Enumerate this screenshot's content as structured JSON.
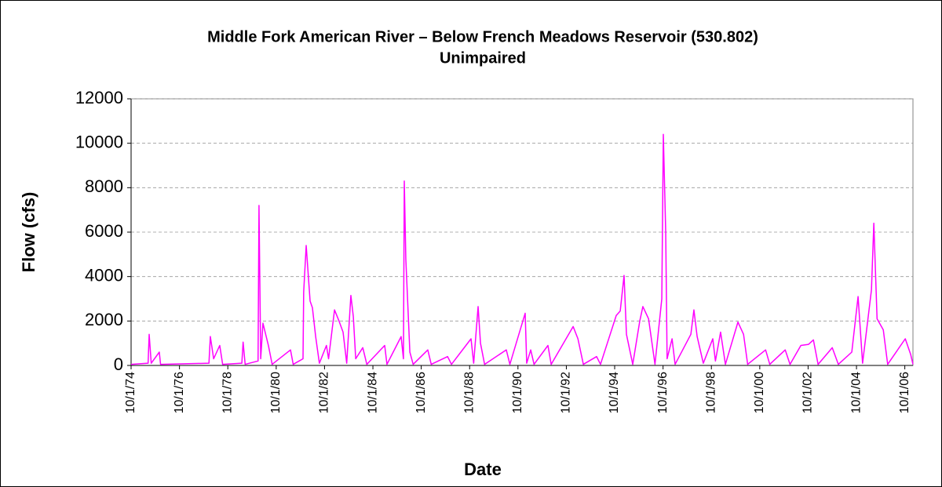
{
  "chart_data": {
    "type": "line",
    "title": "Middle Fork American River – Below French Meadows Reservoir (530.802)",
    "subtitle": "Unimpaired",
    "x_label": "Date",
    "y_label": "Flow (cfs)",
    "x": [
      "1974-10-01",
      "1975-06-15",
      "1975-07-01",
      "1975-08-01",
      "1975-12-01",
      "1975-12-20",
      "1977-12-20",
      "1978-01-10",
      "1978-03-01",
      "1978-06-01",
      "1978-07-15",
      "1979-05-01",
      "1979-05-20",
      "1979-06-20",
      "1980-01-01",
      "1980-01-15",
      "1980-02-10",
      "1980-03-15",
      "1980-06-05",
      "1980-08-01",
      "1981-05-05",
      "1981-06-15",
      "1981-11-10",
      "1981-11-20",
      "1981-12-28",
      "1982-02-25",
      "1982-04-01",
      "1982-05-20",
      "1982-07-15",
      "1982-10-30",
      "1982-12-01",
      "1983-03-01",
      "1983-05-08",
      "1983-07-08",
      "1983-09-01",
      "1983-11-03",
      "1983-12-10",
      "1984-01-15",
      "1984-05-01",
      "1984-07-01",
      "1985-03-28",
      "1985-05-01",
      "1985-12-01",
      "1986-01-05",
      "1986-01-18",
      "1986-02-10",
      "1986-04-12",
      "1986-06-01",
      "1987-01-08",
      "1987-03-01",
      "1987-11-03",
      "1988-01-01",
      "1988-10-22",
      "1988-12-01",
      "1989-02-06",
      "1989-03-14",
      "1989-05-15",
      "1990-04-08",
      "1990-06-01",
      "1991-01-18",
      "1991-02-10",
      "1991-04-12",
      "1991-06-01",
      "1991-12-28",
      "1992-02-15",
      "1993-01-12",
      "1993-03-25",
      "1993-06-15",
      "1994-01-01",
      "1994-03-01",
      "1994-10-25",
      "1994-12-24",
      "1995-02-20",
      "1995-03-28",
      "1995-07-01",
      "1995-10-15",
      "1995-12-01",
      "1996-02-25",
      "1996-06-01",
      "1996-09-12",
      "1996-10-05",
      "1996-11-10",
      "1996-12-01",
      "1997-02-14",
      "1997-04-01",
      "1997-11-25",
      "1998-01-10",
      "1998-02-28",
      "1998-06-01",
      "1998-10-22",
      "1998-12-01",
      "1999-02-17",
      "1999-05-01",
      "1999-11-06",
      "2000-01-30",
      "2000-04-01",
      "2000-12-28",
      "2001-03-01",
      "2001-10-20",
      "2002-01-01",
      "2002-06-14",
      "2002-10-08",
      "2002-12-20",
      "2003-03-01",
      "2003-10-01",
      "2004-01-01",
      "2004-07-22",
      "2004-10-25",
      "2005-01-01",
      "2005-05-15",
      "2005-06-20",
      "2005-08-08",
      "2005-11-10",
      "2006-01-15",
      "2006-10-08",
      "2006-12-28",
      "2007-02-01"
    ],
    "series": [
      {
        "name": "Flow",
        "color": "#ff00ff",
        "values": [
          50,
          100,
          1400,
          100,
          600,
          50,
          100,
          1300,
          300,
          900,
          50,
          100,
          1050,
          50,
          200,
          7200,
          300,
          1900,
          900,
          50,
          700,
          50,
          300,
          3300,
          5400,
          2900,
          2600,
          1300,
          100,
          900,
          300,
          2500,
          2000,
          1500,
          100,
          3150,
          2200,
          300,
          800,
          50,
          900,
          50,
          1300,
          300,
          8300,
          4800,
          600,
          50,
          700,
          50,
          400,
          50,
          1200,
          100,
          2650,
          1000,
          50,
          700,
          50,
          2350,
          100,
          700,
          50,
          900,
          50,
          1750,
          1200,
          50,
          400,
          50,
          2250,
          2450,
          4050,
          1400,
          50,
          2000,
          2650,
          2100,
          50,
          3000,
          10400,
          6000,
          300,
          1200,
          50,
          1400,
          2500,
          1300,
          100,
          1200,
          200,
          1500,
          50,
          1950,
          1400,
          50,
          700,
          50,
          700,
          50,
          900,
          950,
          1150,
          50,
          800,
          50,
          600,
          3100,
          100,
          3400,
          6400,
          2100,
          1600,
          50,
          1200,
          500,
          50
        ]
      }
    ],
    "xlim": [
      "1974-10-01",
      "2007-02-01"
    ],
    "xticks": [
      {
        "value": "1974-10-01",
        "label": "10/1/74"
      },
      {
        "value": "1976-10-01",
        "label": "10/1/76"
      },
      {
        "value": "1978-10-01",
        "label": "10/1/78"
      },
      {
        "value": "1980-10-01",
        "label": "10/1/80"
      },
      {
        "value": "1982-10-01",
        "label": "10/1/82"
      },
      {
        "value": "1984-10-01",
        "label": "10/1/84"
      },
      {
        "value": "1986-10-01",
        "label": "10/1/86"
      },
      {
        "value": "1988-10-01",
        "label": "10/1/88"
      },
      {
        "value": "1990-10-01",
        "label": "10/1/90"
      },
      {
        "value": "1992-10-01",
        "label": "10/1/92"
      },
      {
        "value": "1994-10-01",
        "label": "10/1/94"
      },
      {
        "value": "1996-10-01",
        "label": "10/1/96"
      },
      {
        "value": "1998-10-01",
        "label": "10/1/98"
      },
      {
        "value": "2000-10-01",
        "label": "10/1/00"
      },
      {
        "value": "2002-10-01",
        "label": "10/1/02"
      },
      {
        "value": "2004-10-01",
        "label": "10/1/04"
      },
      {
        "value": "2006-10-01",
        "label": "10/1/06"
      }
    ],
    "ylim": [
      0,
      12000
    ],
    "yticks": [
      0,
      2000,
      4000,
      6000,
      8000,
      10000,
      12000
    ],
    "grid": true
  }
}
